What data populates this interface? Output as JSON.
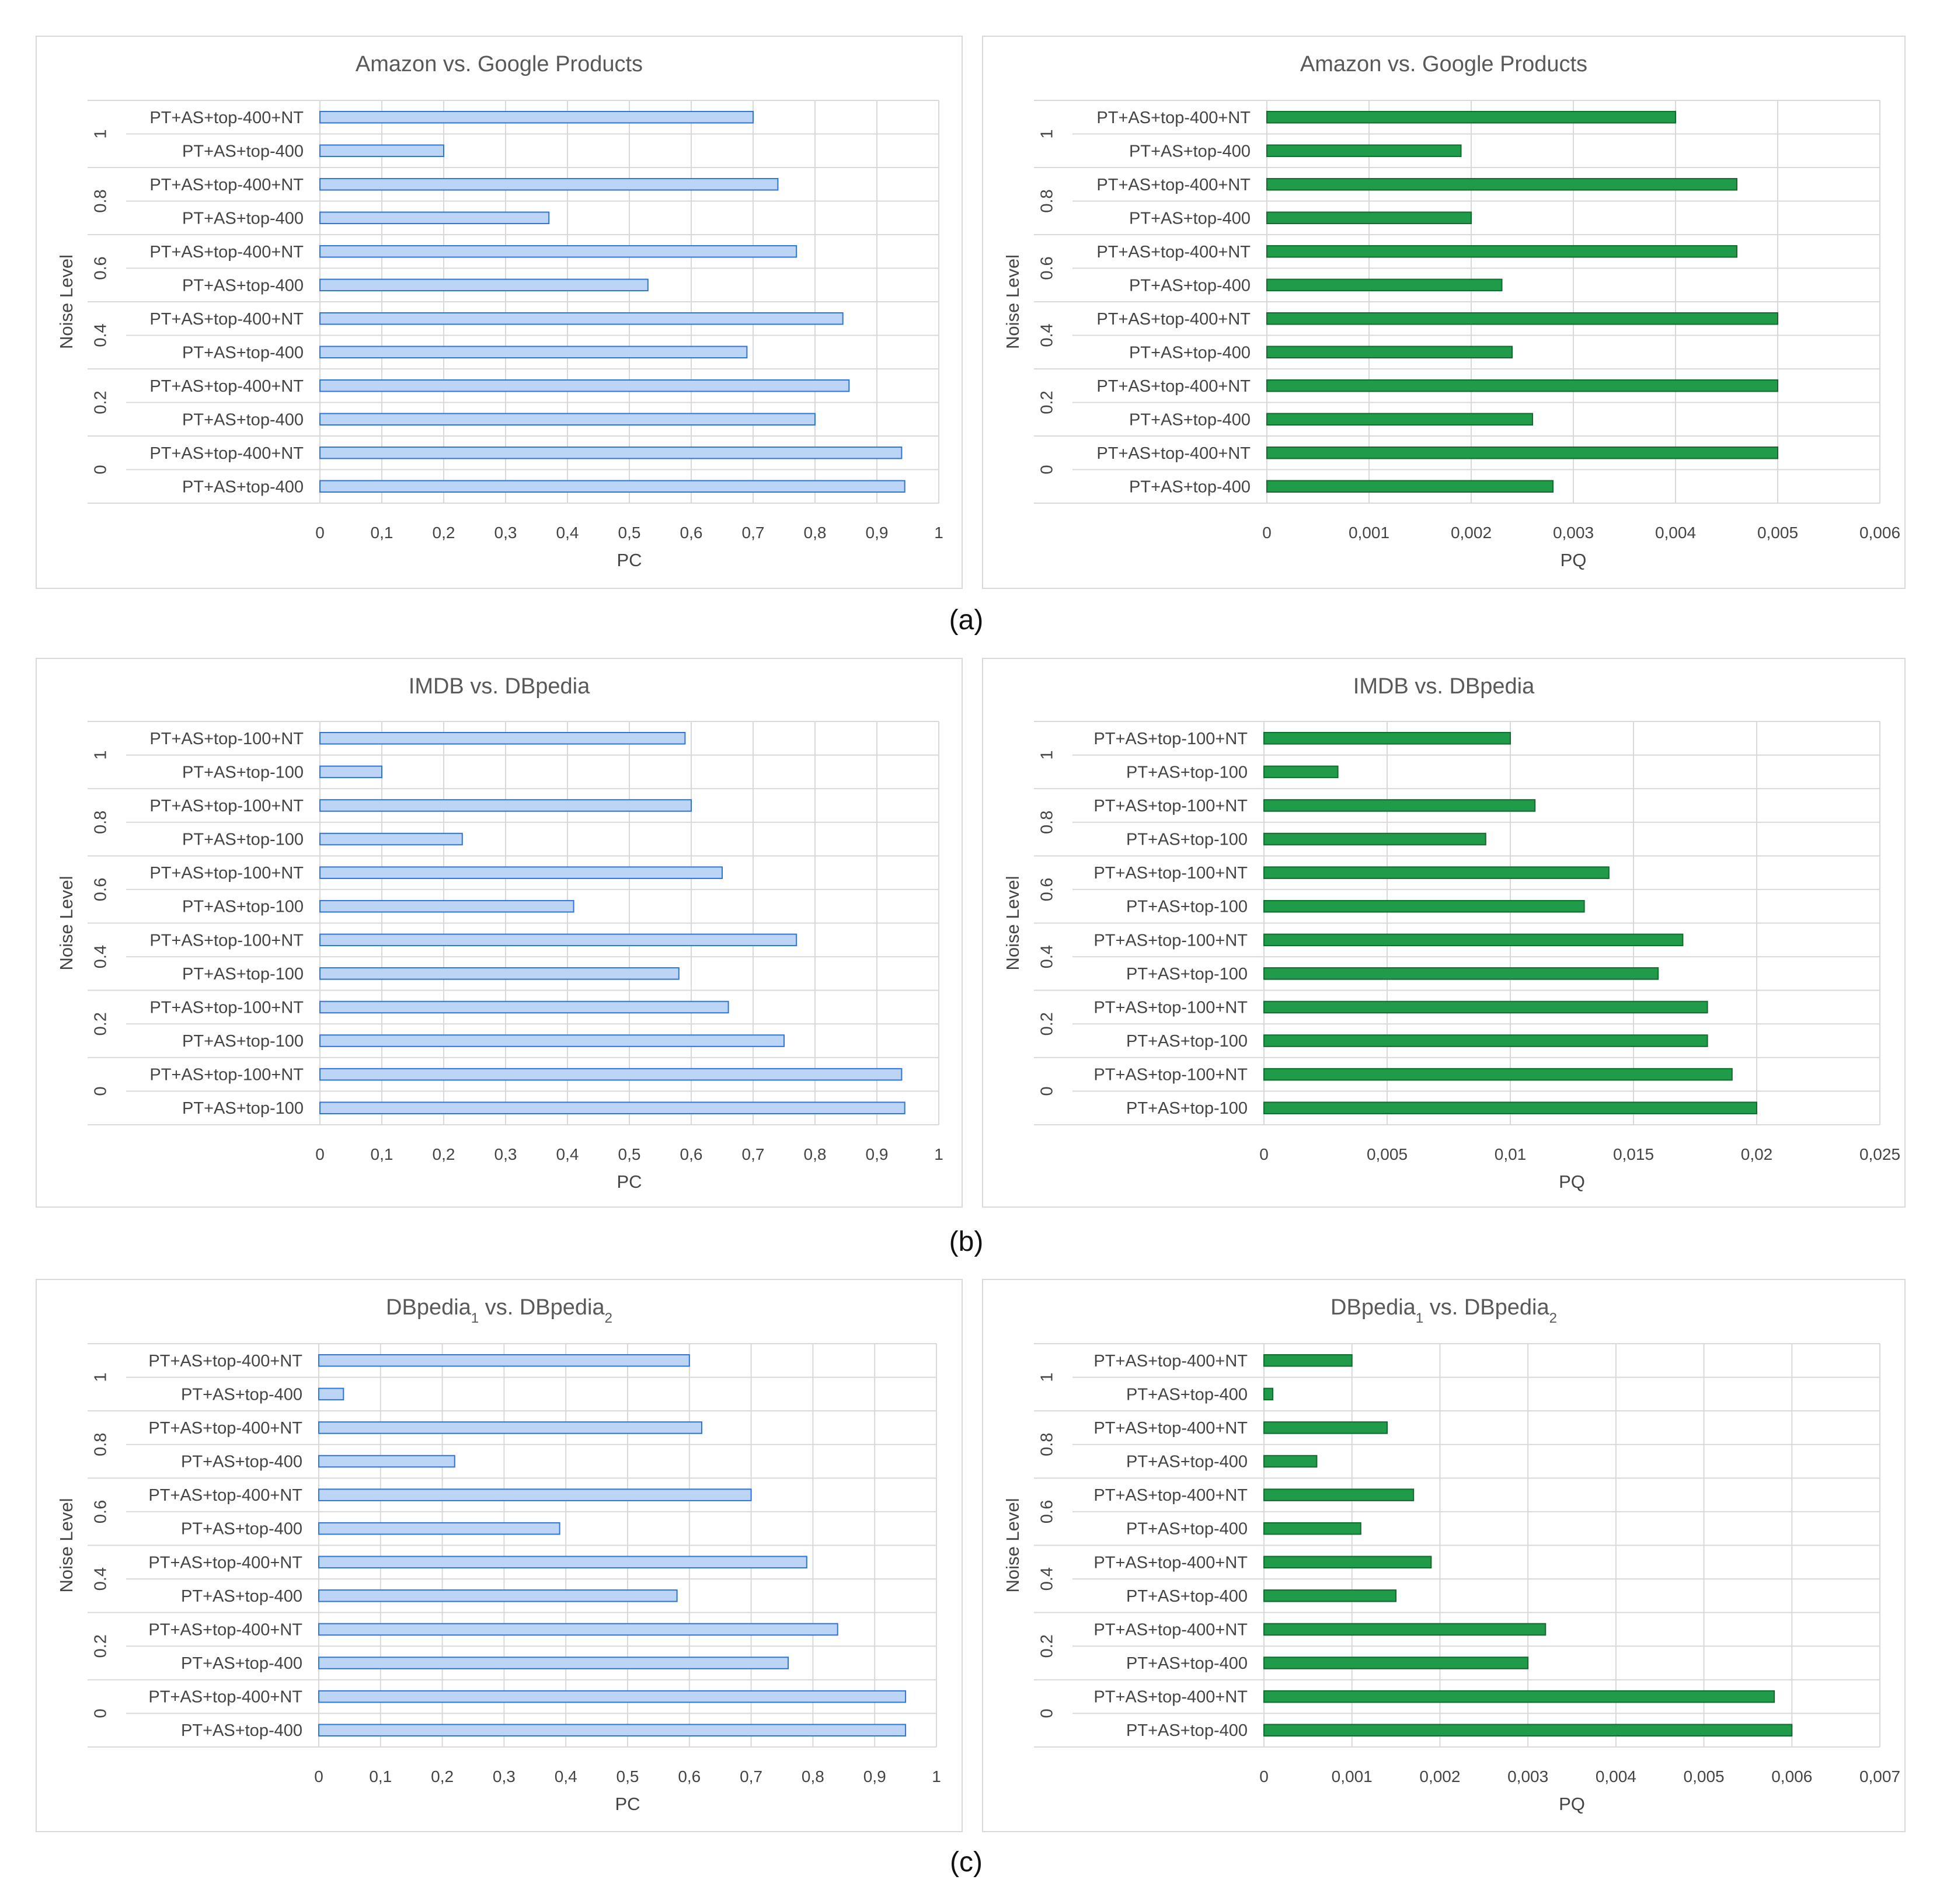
{
  "chart_data": [
    {
      "type": "bar",
      "orientation": "horizontal",
      "title": "Amazon vs. Google Products",
      "title_sub": [],
      "xlabel": "PC",
      "ylabel": "Noise Level",
      "xlim": [
        0,
        1
      ],
      "xticks": [
        "0",
        "0,1",
        "0,2",
        "0,3",
        "0,4",
        "0,5",
        "0,6",
        "0,7",
        "0,8",
        "0,9",
        "1"
      ],
      "groups": [
        "1",
        "0.8",
        "0.6",
        "0.4",
        "0.2",
        "0"
      ],
      "series_labels": [
        "PT+AS+top-400+NT",
        "PT+AS+top-400"
      ],
      "values": [
        [
          0.7,
          0.2
        ],
        [
          0.74,
          0.37
        ],
        [
          0.77,
          0.53
        ],
        [
          0.845,
          0.69
        ],
        [
          0.855,
          0.8
        ],
        [
          0.94,
          0.945
        ]
      ],
      "color": "#bcd5f7",
      "edge": "#2f74d6"
    },
    {
      "type": "bar",
      "orientation": "horizontal",
      "title": "Amazon vs. Google Products",
      "title_sub": [],
      "xlabel": "PQ",
      "ylabel": "Noise Level",
      "xlim": [
        0,
        0.006
      ],
      "xticks": [
        "0",
        "0,001",
        "0,002",
        "0,003",
        "0,004",
        "0,005",
        "0,006"
      ],
      "groups": [
        "1",
        "0.8",
        "0.6",
        "0.4",
        "0.2",
        "0"
      ],
      "series_labels": [
        "PT+AS+top-400+NT",
        "PT+AS+top-400"
      ],
      "values": [
        [
          0.004,
          0.0019
        ],
        [
          0.0046,
          0.002
        ],
        [
          0.0046,
          0.0023
        ],
        [
          0.005,
          0.0024
        ],
        [
          0.005,
          0.0026
        ],
        [
          0.005,
          0.0028
        ]
      ],
      "color": "#1f9b49",
      "edge": "#136b30"
    },
    {
      "type": "bar",
      "orientation": "horizontal",
      "title": "IMDB vs. DBpedia",
      "title_sub": [],
      "xlabel": "PC",
      "ylabel": "Noise Level",
      "xlim": [
        0,
        1
      ],
      "xticks": [
        "0",
        "0,1",
        "0,2",
        "0,3",
        "0,4",
        "0,5",
        "0,6",
        "0,7",
        "0,8",
        "0,9",
        "1"
      ],
      "groups": [
        "1",
        "0.8",
        "0.6",
        "0.4",
        "0.2",
        "0"
      ],
      "series_labels": [
        "PT+AS+top-100+NT",
        "PT+AS+top-100"
      ],
      "values": [
        [
          0.59,
          0.1
        ],
        [
          0.6,
          0.23
        ],
        [
          0.65,
          0.41
        ],
        [
          0.77,
          0.58
        ],
        [
          0.66,
          0.75
        ],
        [
          0.94,
          0.945
        ]
      ],
      "color": "#bcd5f7",
      "edge": "#2f74d6"
    },
    {
      "type": "bar",
      "orientation": "horizontal",
      "title": "IMDB vs. DBpedia",
      "title_sub": [],
      "xlabel": "PQ",
      "ylabel": "Noise Level",
      "xlim": [
        0,
        0.025
      ],
      "xticks": [
        "0",
        "0,005",
        "0,01",
        "0,015",
        "0,02",
        "0,025"
      ],
      "groups": [
        "1",
        "0.8",
        "0.6",
        "0.4",
        "0.2",
        "0"
      ],
      "series_labels": [
        "PT+AS+top-100+NT",
        "PT+AS+top-100"
      ],
      "values": [
        [
          0.01,
          0.003
        ],
        [
          0.011,
          0.009
        ],
        [
          0.014,
          0.013
        ],
        [
          0.017,
          0.016
        ],
        [
          0.018,
          0.018
        ],
        [
          0.019,
          0.02
        ]
      ],
      "color": "#1f9b49",
      "edge": "#136b30"
    },
    {
      "type": "bar",
      "orientation": "horizontal",
      "title": "DBpedia",
      "title_sub": [
        "1",
        " vs. DBpedia",
        "2"
      ],
      "xlabel": "PC",
      "ylabel": "Noise Level",
      "xlim": [
        0,
        1
      ],
      "xticks": [
        "0",
        "0,1",
        "0,2",
        "0,3",
        "0,4",
        "0,5",
        "0,6",
        "0,7",
        "0,8",
        "0,9",
        "1"
      ],
      "groups": [
        "1",
        "0.8",
        "0.6",
        "0.4",
        "0.2",
        "0"
      ],
      "series_labels": [
        "PT+AS+top-400+NT",
        "PT+AS+top-400"
      ],
      "values": [
        [
          0.6,
          0.04
        ],
        [
          0.62,
          0.22
        ],
        [
          0.7,
          0.39
        ],
        [
          0.79,
          0.58
        ],
        [
          0.84,
          0.76
        ],
        [
          0.95,
          0.95
        ]
      ],
      "color": "#bcd5f7",
      "edge": "#2f74d6"
    },
    {
      "type": "bar",
      "orientation": "horizontal",
      "title": "DBpedia",
      "title_sub": [
        "1",
        " vs. DBpedia",
        "2"
      ],
      "xlabel": "PQ",
      "ylabel": "Noise Level",
      "xlim": [
        0,
        0.007
      ],
      "xticks": [
        "0",
        "0,001",
        "0,002",
        "0,003",
        "0,004",
        "0,005",
        "0,006",
        "0,007"
      ],
      "groups": [
        "1",
        "0.8",
        "0.6",
        "0.4",
        "0.2",
        "0"
      ],
      "series_labels": [
        "PT+AS+top-400+NT",
        "PT+AS+top-400"
      ],
      "values": [
        [
          0.001,
          0.0001
        ],
        [
          0.0014,
          0.0006
        ],
        [
          0.0017,
          0.0011
        ],
        [
          0.0019,
          0.0015
        ],
        [
          0.0032,
          0.003
        ],
        [
          0.0058,
          0.006
        ]
      ],
      "color": "#1f9b49",
      "edge": "#136b30"
    }
  ],
  "captions": [
    "(a)",
    "(b)",
    "(c)"
  ]
}
